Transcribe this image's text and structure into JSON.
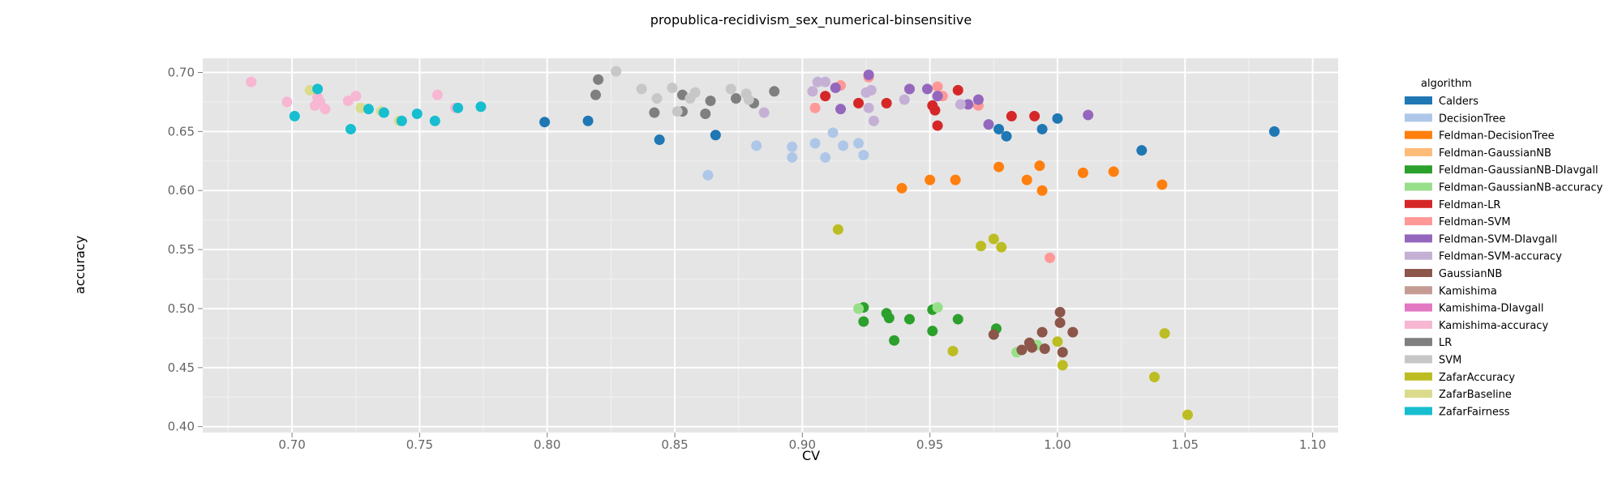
{
  "chart_data": {
    "type": "scatter",
    "title": "propublica-recidivism_sex_numerical-binsensitive",
    "xlabel": "CV",
    "ylabel": "accuracy",
    "xlim": [
      0.665,
      1.11
    ],
    "ylim": [
      0.395,
      0.712
    ],
    "x_ticks": [
      0.7,
      0.75,
      0.8,
      0.85,
      0.9,
      0.95,
      1.0,
      1.05,
      1.1
    ],
    "x_tick_labels": [
      "0.70",
      "0.75",
      "0.80",
      "0.85",
      "0.90",
      "0.95",
      "1.00",
      "1.05",
      "1.10"
    ],
    "y_ticks": [
      0.4,
      0.45,
      0.5,
      0.55,
      0.6,
      0.65,
      0.7
    ],
    "y_tick_labels": [
      "0.40",
      "0.45",
      "0.50",
      "0.55",
      "0.60",
      "0.65",
      "0.70"
    ],
    "grid": true,
    "legend_title": "algorithm",
    "legend_position": "right",
    "series": [
      {
        "name": "Calders",
        "color": "#1f77b4",
        "points": [
          [
            0.799,
            0.658
          ],
          [
            0.816,
            0.659
          ],
          [
            0.844,
            0.643
          ],
          [
            0.866,
            0.647
          ],
          [
            0.977,
            0.652
          ],
          [
            0.98,
            0.646
          ],
          [
            0.994,
            0.652
          ],
          [
            1.0,
            0.661
          ],
          [
            1.033,
            0.634
          ],
          [
            1.085,
            0.65
          ]
        ]
      },
      {
        "name": "DecisionTree",
        "color": "#aec7e8",
        "points": [
          [
            0.863,
            0.613
          ],
          [
            0.882,
            0.638
          ],
          [
            0.896,
            0.637
          ],
          [
            0.896,
            0.628
          ],
          [
            0.905,
            0.64
          ],
          [
            0.909,
            0.628
          ],
          [
            0.912,
            0.649
          ],
          [
            0.916,
            0.638
          ],
          [
            0.922,
            0.64
          ],
          [
            0.924,
            0.63
          ]
        ]
      },
      {
        "name": "Feldman-DecisionTree",
        "color": "#ff7f0e",
        "points": [
          [
            0.939,
            0.602
          ],
          [
            0.95,
            0.609
          ],
          [
            0.96,
            0.609
          ],
          [
            0.977,
            0.62
          ],
          [
            0.988,
            0.609
          ],
          [
            0.993,
            0.621
          ],
          [
            0.994,
            0.6
          ],
          [
            1.01,
            0.615
          ],
          [
            1.022,
            0.616
          ],
          [
            1.041,
            0.605
          ]
        ]
      },
      {
        "name": "Feldman-GaussianNB",
        "color": "#ffbb78",
        "points": []
      },
      {
        "name": "Feldman-GaussianNB-DIavgall",
        "color": "#2ca02c",
        "points": [
          [
            0.924,
            0.501
          ],
          [
            0.924,
            0.489
          ],
          [
            0.933,
            0.496
          ],
          [
            0.934,
            0.492
          ],
          [
            0.936,
            0.473
          ],
          [
            0.942,
            0.491
          ],
          [
            0.951,
            0.499
          ],
          [
            0.951,
            0.481
          ],
          [
            0.961,
            0.491
          ],
          [
            0.976,
            0.483
          ]
        ]
      },
      {
        "name": "Feldman-GaussianNB-accuracy",
        "color": "#98df8a",
        "points": [
          [
            0.922,
            0.5
          ],
          [
            0.953,
            0.501
          ],
          [
            0.984,
            0.463
          ],
          [
            0.992,
            0.469
          ]
        ]
      },
      {
        "name": "Feldman-LR",
        "color": "#d62728",
        "points": [
          [
            0.909,
            0.68
          ],
          [
            0.922,
            0.674
          ],
          [
            0.933,
            0.674
          ],
          [
            0.951,
            0.672
          ],
          [
            0.952,
            0.668
          ],
          [
            0.953,
            0.655
          ],
          [
            0.961,
            0.685
          ],
          [
            0.982,
            0.663
          ],
          [
            0.991,
            0.663
          ]
        ]
      },
      {
        "name": "Feldman-SVM",
        "color": "#ff9896",
        "points": [
          [
            0.905,
            0.67
          ],
          [
            0.915,
            0.689
          ],
          [
            0.926,
            0.696
          ],
          [
            0.953,
            0.688
          ],
          [
            0.955,
            0.68
          ],
          [
            0.969,
            0.672
          ],
          [
            0.997,
            0.543
          ]
        ]
      },
      {
        "name": "Feldman-SVM-DIavgall",
        "color": "#9467bd",
        "points": [
          [
            0.913,
            0.687
          ],
          [
            0.915,
            0.669
          ],
          [
            0.926,
            0.698
          ],
          [
            0.942,
            0.686
          ],
          [
            0.949,
            0.686
          ],
          [
            0.953,
            0.68
          ],
          [
            0.965,
            0.673
          ],
          [
            0.969,
            0.677
          ],
          [
            0.973,
            0.656
          ],
          [
            1.012,
            0.664
          ]
        ]
      },
      {
        "name": "Feldman-SVM-accuracy",
        "color": "#c5b0d5",
        "points": [
          [
            0.904,
            0.684
          ],
          [
            0.906,
            0.692
          ],
          [
            0.909,
            0.692
          ],
          [
            0.925,
            0.683
          ],
          [
            0.926,
            0.67
          ],
          [
            0.927,
            0.685
          ],
          [
            0.928,
            0.659
          ],
          [
            0.94,
            0.677
          ],
          [
            0.962,
            0.673
          ],
          [
            0.885,
            0.666
          ]
        ]
      },
      {
        "name": "GaussianNB",
        "color": "#8c564b",
        "points": [
          [
            0.975,
            0.478
          ],
          [
            0.986,
            0.465
          ],
          [
            0.989,
            0.471
          ],
          [
            0.99,
            0.467
          ],
          [
            0.994,
            0.48
          ],
          [
            0.995,
            0.466
          ],
          [
            1.001,
            0.497
          ],
          [
            1.001,
            0.488
          ],
          [
            1.002,
            0.463
          ],
          [
            1.006,
            0.48
          ]
        ]
      },
      {
        "name": "Kamishima",
        "color": "#c49c94",
        "points": []
      },
      {
        "name": "Kamishima-DIavgall",
        "color": "#e377c2",
        "points": []
      },
      {
        "name": "Kamishima-accuracy",
        "color": "#f7b6d2",
        "points": [
          [
            0.684,
            0.692
          ],
          [
            0.698,
            0.675
          ],
          [
            0.709,
            0.672
          ],
          [
            0.71,
            0.679
          ],
          [
            0.711,
            0.675
          ],
          [
            0.713,
            0.669
          ],
          [
            0.722,
            0.676
          ],
          [
            0.725,
            0.68
          ],
          [
            0.757,
            0.681
          ],
          [
            0.764,
            0.67
          ]
        ]
      },
      {
        "name": "LR",
        "color": "#7f7f7f",
        "points": [
          [
            0.82,
            0.694
          ],
          [
            0.819,
            0.681
          ],
          [
            0.842,
            0.666
          ],
          [
            0.853,
            0.681
          ],
          [
            0.853,
            0.667
          ],
          [
            0.862,
            0.665
          ],
          [
            0.864,
            0.676
          ],
          [
            0.874,
            0.678
          ],
          [
            0.881,
            0.674
          ],
          [
            0.889,
            0.684
          ]
        ]
      },
      {
        "name": "SVM",
        "color": "#c7c7c7",
        "points": [
          [
            0.827,
            0.701
          ],
          [
            0.837,
            0.686
          ],
          [
            0.843,
            0.678
          ],
          [
            0.849,
            0.687
          ],
          [
            0.851,
            0.667
          ],
          [
            0.856,
            0.678
          ],
          [
            0.858,
            0.683
          ],
          [
            0.872,
            0.686
          ],
          [
            0.878,
            0.682
          ],
          [
            0.879,
            0.677
          ]
        ]
      },
      {
        "name": "ZafarAccuracy",
        "color": "#bcbd22",
        "points": [
          [
            0.914,
            0.567
          ],
          [
            0.959,
            0.464
          ],
          [
            0.97,
            0.553
          ],
          [
            0.975,
            0.559
          ],
          [
            0.978,
            0.552
          ],
          [
            1.0,
            0.472
          ],
          [
            1.002,
            0.452
          ],
          [
            1.038,
            0.442
          ],
          [
            1.042,
            0.479
          ],
          [
            1.051,
            0.41
          ]
        ]
      },
      {
        "name": "ZafarBaseline",
        "color": "#dbdb8d",
        "points": [
          [
            0.707,
            0.685
          ],
          [
            0.727,
            0.67
          ],
          [
            0.735,
            0.667
          ],
          [
            0.742,
            0.659
          ]
        ]
      },
      {
        "name": "ZafarFairness",
        "color": "#17becf",
        "points": [
          [
            0.701,
            0.663
          ],
          [
            0.71,
            0.686
          ],
          [
            0.723,
            0.652
          ],
          [
            0.73,
            0.669
          ],
          [
            0.736,
            0.666
          ],
          [
            0.743,
            0.659
          ],
          [
            0.749,
            0.665
          ],
          [
            0.756,
            0.659
          ],
          [
            0.765,
            0.67
          ],
          [
            0.774,
            0.671
          ]
        ]
      }
    ]
  }
}
